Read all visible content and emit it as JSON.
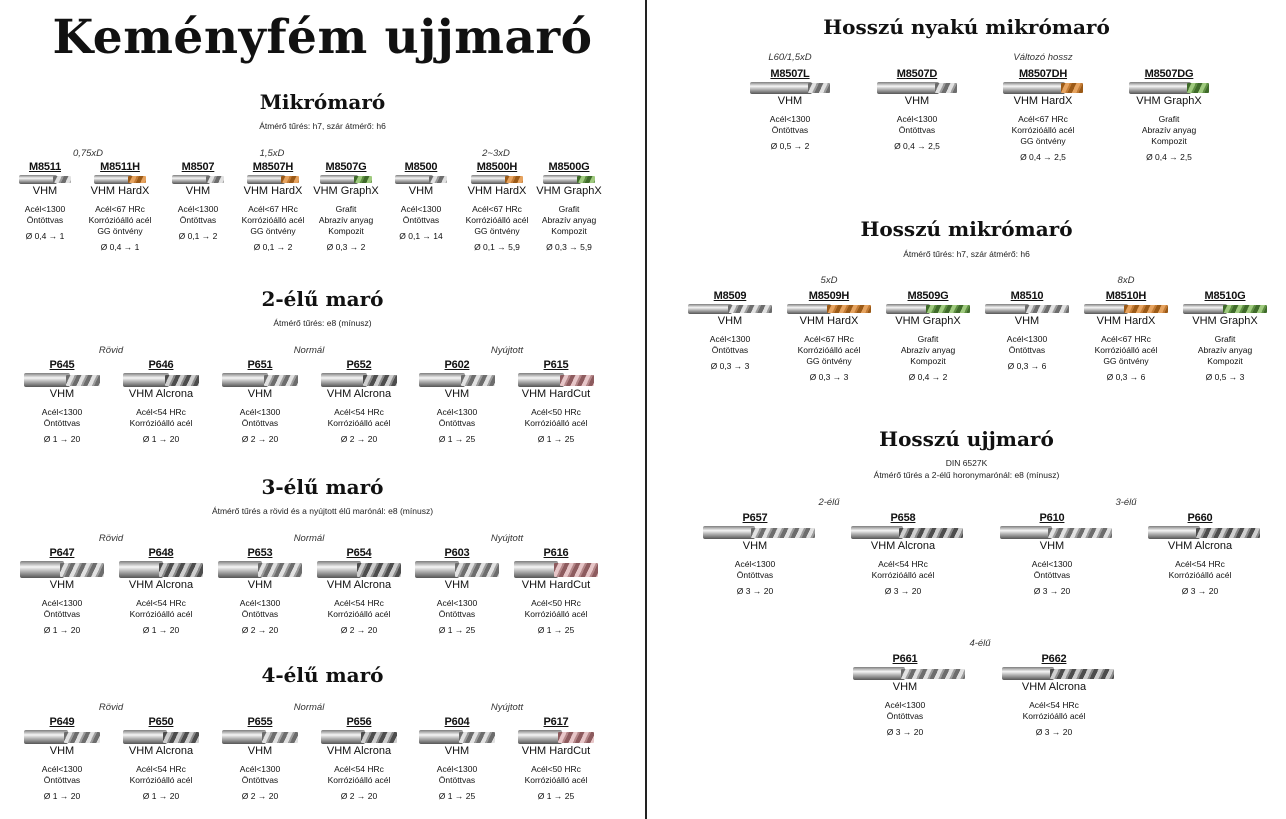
{
  "left": {
    "title": "Keményfém ujjmaró",
    "sections": [
      {
        "title": "Mikrómaró",
        "note": "Átmérő tűrés: h7, szár átmérő: h6",
        "groups": [
          "0,75xD",
          "1,5xD",
          "2~3xD"
        ],
        "tools": [
          {
            "code": "M8511",
            "grade": "VHM",
            "mat": [
              "Acél<1300",
              "Öntöttvas"
            ],
            "dia": "Ø 0,4 → 1"
          },
          {
            "code": "M8511H",
            "grade": "VHM HardX",
            "mat": [
              "Acél<67 HRc",
              "Korrózióálló acél",
              "GG öntvény"
            ],
            "dia": "Ø 0,4 → 1"
          },
          {
            "code": "M8507",
            "grade": "VHM",
            "mat": [
              "Acél<1300",
              "Öntöttvas"
            ],
            "dia": "Ø 0,1 → 2"
          },
          {
            "code": "M8507H",
            "grade": "VHM HardX",
            "mat": [
              "Acél<67 HRc",
              "Korrózióálló acél",
              "GG öntvény"
            ],
            "dia": "Ø 0,1 → 2"
          },
          {
            "code": "M8507G",
            "grade": "VHM GraphX",
            "mat": [
              "Grafit",
              "Abrazív anyag",
              "Kompozit"
            ],
            "dia": "Ø 0,3 → 2"
          },
          {
            "code": "M8500",
            "grade": "VHM",
            "mat": [
              "Acél<1300",
              "Öntöttvas"
            ],
            "dia": "Ø 0,1 → 14"
          },
          {
            "code": "M8500H",
            "grade": "VHM HardX",
            "mat": [
              "Acél<67 HRc",
              "Korrózióálló acél",
              "GG öntvény"
            ],
            "dia": "Ø 0,1 → 5,9"
          },
          {
            "code": "M8500G",
            "grade": "VHM GraphX",
            "mat": [
              "Grafit",
              "Abrazív anyag",
              "Kompozit"
            ],
            "dia": "Ø 0,3 → 5,9"
          }
        ]
      },
      {
        "title": "2-élű maró",
        "note": "Átmérő tűrés: e8 (mínusz)",
        "groups": [
          "Rövid",
          "Normál",
          "Nyújtott"
        ],
        "tools": [
          {
            "code": "P645",
            "grade": "VHM",
            "mat": [
              "Acél<1300",
              "Öntöttvas"
            ],
            "dia": "Ø 1 → 20"
          },
          {
            "code": "P646",
            "grade": "VHM Alcrona",
            "mat": [
              "Acél<54 HRc",
              "Korrózióálló acél"
            ],
            "dia": "Ø 1 → 20"
          },
          {
            "code": "P651",
            "grade": "VHM",
            "mat": [
              "Acél<1300",
              "Öntöttvas"
            ],
            "dia": "Ø 2 → 20"
          },
          {
            "code": "P652",
            "grade": "VHM Alcrona",
            "mat": [
              "Acél<54 HRc",
              "Korrózióálló acél"
            ],
            "dia": "Ø 2 → 20"
          },
          {
            "code": "P602",
            "grade": "VHM",
            "mat": [
              "Acél<1300",
              "Öntöttvas"
            ],
            "dia": "Ø 1 → 25"
          },
          {
            "code": "P615",
            "grade": "VHM HardCut",
            "mat": [
              "Acél<50 HRc",
              "Korrózióálló acél"
            ],
            "dia": "Ø 1 → 25"
          }
        ]
      },
      {
        "title": "3-élű maró",
        "note": "Átmérő tűrés a rövid és a nyújtott élű marónál: e8 (mínusz)",
        "groups": [
          "Rövid",
          "Normál",
          "Nyújtott"
        ],
        "tools": [
          {
            "code": "P647",
            "grade": "VHM",
            "mat": [
              "Acél<1300",
              "Öntöttvas"
            ],
            "dia": "Ø 1 → 20"
          },
          {
            "code": "P648",
            "grade": "VHM Alcrona",
            "mat": [
              "Acél<54 HRc",
              "Korrózióálló acél"
            ],
            "dia": "Ø 1 → 20"
          },
          {
            "code": "P653",
            "grade": "VHM",
            "mat": [
              "Acél<1300",
              "Öntöttvas"
            ],
            "dia": "Ø 2 → 20"
          },
          {
            "code": "P654",
            "grade": "VHM Alcrona",
            "mat": [
              "Acél<54 HRc",
              "Korrózióálló acél"
            ],
            "dia": "Ø 2 → 20"
          },
          {
            "code": "P603",
            "grade": "VHM",
            "mat": [
              "Acél<1300",
              "Öntöttvas"
            ],
            "dia": "Ø 1 → 25"
          },
          {
            "code": "P616",
            "grade": "VHM HardCut",
            "mat": [
              "Acél<50 HRc",
              "Korrózióálló acél"
            ],
            "dia": "Ø 1 → 25"
          }
        ]
      },
      {
        "title": "4-élű maró",
        "note": "",
        "groups": [
          "Rövid",
          "Normál",
          "Nyújtott"
        ],
        "tools": [
          {
            "code": "P649",
            "grade": "VHM",
            "mat": [
              "Acél<1300",
              "Öntöttvas"
            ],
            "dia": "Ø 1 → 20"
          },
          {
            "code": "P650",
            "grade": "VHM Alcrona",
            "mat": [
              "Acél<54 HRc",
              "Korrózióálló acél"
            ],
            "dia": "Ø 1 → 20"
          },
          {
            "code": "P655",
            "grade": "VHM",
            "mat": [
              "Acél<1300",
              "Öntöttvas"
            ],
            "dia": "Ø 2 → 20"
          },
          {
            "code": "P656",
            "grade": "VHM Alcrona",
            "mat": [
              "Acél<54 HRc",
              "Korrózióálló acél"
            ],
            "dia": "Ø 2 → 20"
          },
          {
            "code": "P604",
            "grade": "VHM",
            "mat": [
              "Acél<1300",
              "Öntöttvas"
            ],
            "dia": "Ø 1 → 25"
          },
          {
            "code": "P617",
            "grade": "VHM HardCut",
            "mat": [
              "Acél<50 HRc",
              "Korrózióálló acél"
            ],
            "dia": "Ø 1 → 25"
          }
        ]
      }
    ]
  },
  "right": {
    "sections": [
      {
        "title": "Hosszú nyakú mikrómaró",
        "note": "",
        "groups": [
          "L60/1,5xD",
          "Változó hossz"
        ],
        "tools": [
          {
            "code": "M8507L",
            "grade": "VHM",
            "mat": [
              "Acél<1300",
              "Öntöttvas"
            ],
            "dia": "Ø 0,5 → 2"
          },
          {
            "code": "M8507D",
            "grade": "VHM",
            "mat": [
              "Acél<1300",
              "Öntöttvas"
            ],
            "dia": "Ø 0,4 → 2,5"
          },
          {
            "code": "M8507DH",
            "grade": "VHM HardX",
            "mat": [
              "Acél<67 HRc",
              "Korrózióálló acél",
              "GG öntvény"
            ],
            "dia": "Ø 0,4 → 2,5"
          },
          {
            "code": "M8507DG",
            "grade": "VHM GraphX",
            "mat": [
              "Grafit",
              "Abrazív anyag",
              "Kompozit"
            ],
            "dia": "Ø 0,4 → 2,5"
          }
        ]
      },
      {
        "title": "Hosszú mikrómaró",
        "note": "Átmérő tűrés: h7, szár átmérő: h6",
        "groups": [
          "5xD",
          "8xD"
        ],
        "tools": [
          {
            "code": "M8509",
            "grade": "VHM",
            "mat": [
              "Acél<1300",
              "Öntöttvas"
            ],
            "dia": "Ø 0,3 → 3"
          },
          {
            "code": "M8509H",
            "grade": "VHM HardX",
            "mat": [
              "Acél<67 HRc",
              "Korrózióálló acél",
              "GG öntvény"
            ],
            "dia": "Ø 0,3 → 3"
          },
          {
            "code": "M8509G",
            "grade": "VHM GraphX",
            "mat": [
              "Grafit",
              "Abrazív anyag",
              "Kompozit"
            ],
            "dia": "Ø 0,4 → 2"
          },
          {
            "code": "M8510",
            "grade": "VHM",
            "mat": [
              "Acél<1300",
              "Öntöttvas"
            ],
            "dia": "Ø 0,3 → 6"
          },
          {
            "code": "M8510H",
            "grade": "VHM HardX",
            "mat": [
              "Acél<67 HRc",
              "Korrózióálló acél",
              "GG öntvény"
            ],
            "dia": "Ø 0,3 → 6"
          },
          {
            "code": "M8510G",
            "grade": "VHM GraphX",
            "mat": [
              "Grafit",
              "Abrazív anyag",
              "Kompozit"
            ],
            "dia": "Ø 0,5 → 3"
          }
        ]
      },
      {
        "title": "Hosszú ujjmaró",
        "note": "DIN 6527K",
        "note2": "Átmérő tűrés a 2-élű horonymarónál: e8 (mínusz)",
        "groups": [
          "2-élű",
          "3-élű",
          "4-élű"
        ],
        "tools": [
          {
            "code": "P657",
            "grade": "VHM",
            "mat": [
              "Acél<1300",
              "Öntöttvas"
            ],
            "dia": "Ø 3 → 20"
          },
          {
            "code": "P658",
            "grade": "VHM Alcrona",
            "mat": [
              "Acél<54 HRc",
              "Korrózióálló acél"
            ],
            "dia": "Ø 3 → 20"
          },
          {
            "code": "P610",
            "grade": "VHM",
            "mat": [
              "Acél<1300",
              "Öntöttvas"
            ],
            "dia": "Ø 3 → 20"
          },
          {
            "code": "P660",
            "grade": "VHM Alcrona",
            "mat": [
              "Acél<54 HRc",
              "Korrózióálló acél"
            ],
            "dia": "Ø 3 → 20"
          },
          {
            "code": "P661",
            "grade": "VHM",
            "mat": [
              "Acél<1300",
              "Öntöttvas"
            ],
            "dia": "Ø 3 → 20"
          },
          {
            "code": "P662",
            "grade": "VHM Alcrona",
            "mat": [
              "Acél<54 HRc",
              "Korrózióálló acél"
            ],
            "dia": "Ø 3 → 20"
          }
        ]
      }
    ]
  }
}
